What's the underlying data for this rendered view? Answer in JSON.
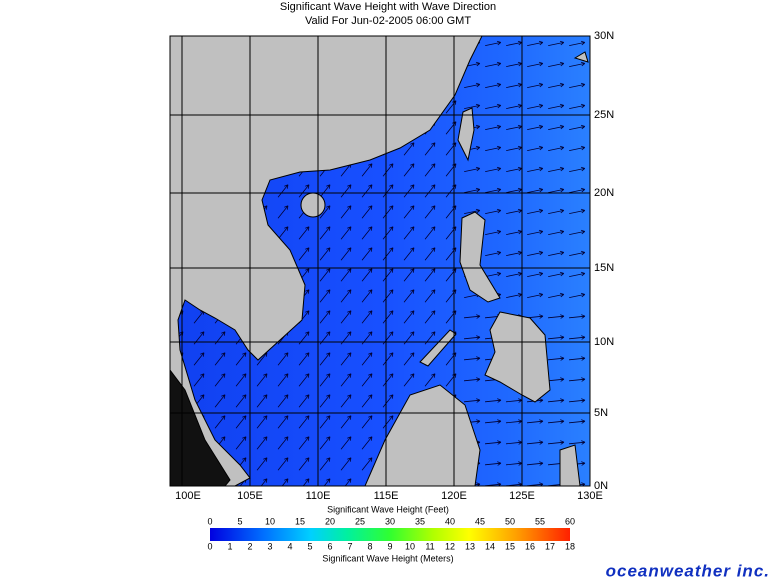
{
  "header": {
    "title": "Significant Wave Height with Wave Direction",
    "subtitle": "Valid For Jun-02-2005 06:00 GMT"
  },
  "map": {
    "lat_labels": [
      "30N",
      "25N",
      "20N",
      "15N",
      "10N",
      "5N",
      "0N"
    ],
    "lon_labels": [
      "100E",
      "105E",
      "110E",
      "115E",
      "120E",
      "125E",
      "130E"
    ]
  },
  "legend": {
    "feet_title": "Significant Wave Height (Feet)",
    "feet_ticks": [
      0,
      5,
      10,
      15,
      20,
      25,
      30,
      35,
      40,
      45,
      50,
      55,
      60
    ],
    "meters_title": "Significant Wave Height (Meters)",
    "meters_ticks": [
      0,
      1,
      2,
      3,
      4,
      5,
      6,
      7,
      8,
      9,
      10,
      11,
      12,
      13,
      14,
      15,
      16,
      17,
      18
    ]
  },
  "brand": "oceanweather inc."
}
